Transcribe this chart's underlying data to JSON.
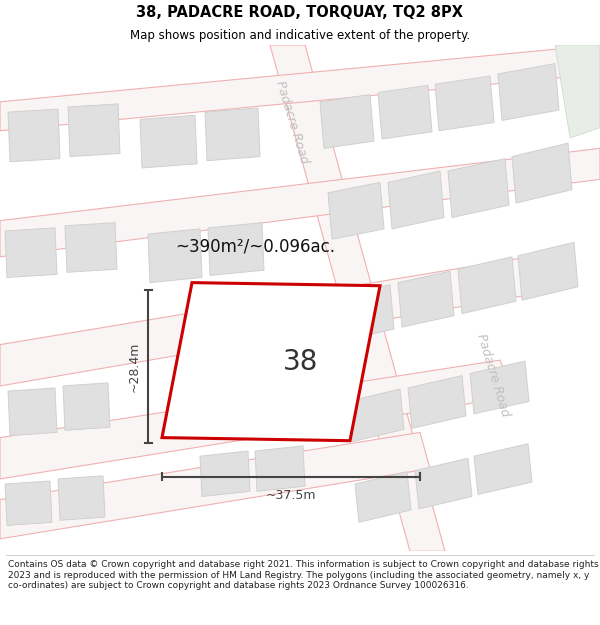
{
  "title": "38, PADACRE ROAD, TORQUAY, TQ2 8PX",
  "subtitle": "Map shows position and indicative extent of the property.",
  "footer": "Contains OS data © Crown copyright and database right 2021. This information is subject to Crown copyright and database rights 2023 and is reproduced with the permission of HM Land Registry. The polygons (including the associated geometry, namely x, y co-ordinates) are subject to Crown copyright and database rights 2023 Ordnance Survey 100026316.",
  "area_label": "~390m²/~0.096ac.",
  "width_label": "~37.5m",
  "height_label": "~28.4m",
  "plot_number": "38",
  "road_fill": "#faf5f5",
  "road_stroke": "#f0b0b0",
  "building_fill": "#e0e0e0",
  "building_stroke": "#d0d0d0",
  "green_fill": "#e8ede8",
  "plot_stroke": "#cc0000",
  "dim_color": "#444444",
  "road_label_color": "#c0c0c0",
  "title_fontsize": 10.5,
  "subtitle_fontsize": 8.5,
  "footer_fontsize": 6.5,
  "area_fontsize": 12,
  "plot_label_fontsize": 20,
  "dim_fontsize": 9,
  "road_label_fontsize": 9
}
